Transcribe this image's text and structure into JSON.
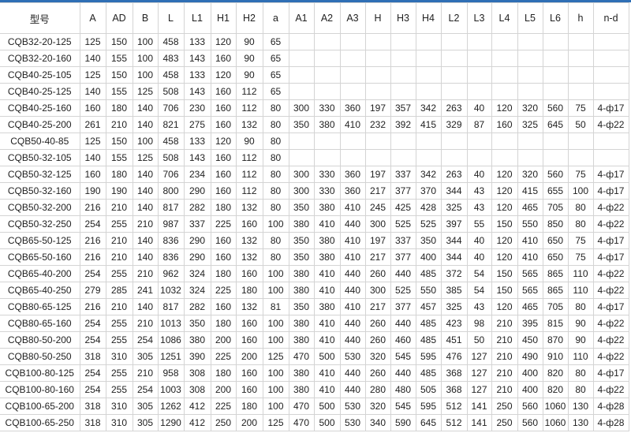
{
  "table": {
    "headers": [
      "型号",
      "A",
      "AD",
      "B",
      "L",
      "L1",
      "H1",
      "H2",
      "a",
      "A1",
      "A2",
      "A3",
      "H",
      "H3",
      "H4",
      "L2",
      "L3",
      "L4",
      "L5",
      "L6",
      "h",
      "n-d"
    ],
    "rows": [
      [
        "CQB32-20-125",
        "125",
        "150",
        "100",
        "458",
        "133",
        "120",
        "90",
        "65",
        "",
        "",
        "",
        "",
        "",
        "",
        "",
        "",
        "",
        "",
        "",
        "",
        ""
      ],
      [
        "CQB32-20-160",
        "140",
        "155",
        "100",
        "483",
        "143",
        "160",
        "90",
        "65",
        "",
        "",
        "",
        "",
        "",
        "",
        "",
        "",
        "",
        "",
        "",
        "",
        ""
      ],
      [
        "CQB40-25-105",
        "125",
        "150",
        "100",
        "458",
        "133",
        "120",
        "90",
        "65",
        "",
        "",
        "",
        "",
        "",
        "",
        "",
        "",
        "",
        "",
        "",
        "",
        ""
      ],
      [
        "CQB40-25-125",
        "140",
        "155",
        "125",
        "508",
        "143",
        "160",
        "112",
        "65",
        "",
        "",
        "",
        "",
        "",
        "",
        "",
        "",
        "",
        "",
        "",
        "",
        ""
      ],
      [
        "CQB40-25-160",
        "160",
        "180",
        "140",
        "706",
        "230",
        "160",
        "112",
        "80",
        "300",
        "330",
        "360",
        "197",
        "357",
        "342",
        "263",
        "40",
        "120",
        "320",
        "560",
        "75",
        "4-ф17"
      ],
      [
        "CQB40-25-200",
        "261",
        "210",
        "140",
        "821",
        "275",
        "160",
        "132",
        "80",
        "350",
        "380",
        "410",
        "232",
        "392",
        "415",
        "329",
        "87",
        "160",
        "325",
        "645",
        "50",
        "4-ф22"
      ],
      [
        "CQB50-40-85",
        "125",
        "150",
        "100",
        "458",
        "133",
        "120",
        "90",
        "80",
        "",
        "",
        "",
        "",
        "",
        "",
        "",
        "",
        "",
        "",
        "",
        "",
        ""
      ],
      [
        "CQB50-32-105",
        "140",
        "155",
        "125",
        "508",
        "143",
        "160",
        "112",
        "80",
        "",
        "",
        "",
        "",
        "",
        "",
        "",
        "",
        "",
        "",
        "",
        "",
        ""
      ],
      [
        "CQB50-32-125",
        "160",
        "180",
        "140",
        "706",
        "234",
        "160",
        "112",
        "80",
        "300",
        "330",
        "360",
        "197",
        "337",
        "342",
        "263",
        "40",
        "120",
        "320",
        "560",
        "75",
        "4-ф17"
      ],
      [
        "CQB50-32-160",
        "190",
        "190",
        "140",
        "800",
        "290",
        "160",
        "112",
        "80",
        "300",
        "330",
        "360",
        "217",
        "377",
        "370",
        "344",
        "43",
        "120",
        "415",
        "655",
        "100",
        "4-ф17"
      ],
      [
        "CQB50-32-200",
        "216",
        "210",
        "140",
        "817",
        "282",
        "180",
        "132",
        "80",
        "350",
        "380",
        "410",
        "245",
        "425",
        "428",
        "325",
        "43",
        "120",
        "465",
        "705",
        "80",
        "4-ф22"
      ],
      [
        "CQB50-32-250",
        "254",
        "255",
        "210",
        "987",
        "337",
        "225",
        "160",
        "100",
        "380",
        "410",
        "440",
        "300",
        "525",
        "525",
        "397",
        "55",
        "150",
        "550",
        "850",
        "80",
        "4-ф22"
      ],
      [
        "CQB65-50-125",
        "216",
        "210",
        "140",
        "836",
        "290",
        "160",
        "132",
        "80",
        "350",
        "380",
        "410",
        "197",
        "337",
        "350",
        "344",
        "40",
        "120",
        "410",
        "650",
        "75",
        "4-ф17"
      ],
      [
        "CQB65-50-160",
        "216",
        "210",
        "140",
        "836",
        "290",
        "160",
        "132",
        "80",
        "350",
        "380",
        "410",
        "217",
        "377",
        "400",
        "344",
        "40",
        "120",
        "410",
        "650",
        "75",
        "4-ф17"
      ],
      [
        "CQB65-40-200",
        "254",
        "255",
        "210",
        "962",
        "324",
        "180",
        "160",
        "100",
        "380",
        "410",
        "440",
        "260",
        "440",
        "485",
        "372",
        "54",
        "150",
        "565",
        "865",
        "110",
        "4-ф22"
      ],
      [
        "CQB65-40-250",
        "279",
        "285",
        "241",
        "1032",
        "324",
        "225",
        "180",
        "100",
        "380",
        "410",
        "440",
        "300",
        "525",
        "550",
        "385",
        "54",
        "150",
        "565",
        "865",
        "110",
        "4-ф22"
      ],
      [
        "CQB80-65-125",
        "216",
        "210",
        "140",
        "817",
        "282",
        "160",
        "132",
        "81",
        "350",
        "380",
        "410",
        "217",
        "377",
        "457",
        "325",
        "43",
        "120",
        "465",
        "705",
        "80",
        "4-ф17"
      ],
      [
        "CQB80-65-160",
        "254",
        "255",
        "210",
        "1013",
        "350",
        "180",
        "160",
        "100",
        "380",
        "410",
        "440",
        "260",
        "440",
        "485",
        "423",
        "98",
        "210",
        "395",
        "815",
        "90",
        "4-ф22"
      ],
      [
        "CQB80-50-200",
        "254",
        "255",
        "254",
        "1086",
        "380",
        "200",
        "160",
        "100",
        "380",
        "410",
        "440",
        "260",
        "460",
        "485",
        "451",
        "50",
        "210",
        "450",
        "870",
        "90",
        "4-ф22"
      ],
      [
        "CQB80-50-250",
        "318",
        "310",
        "305",
        "1251",
        "390",
        "225",
        "200",
        "125",
        "470",
        "500",
        "530",
        "320",
        "545",
        "595",
        "476",
        "127",
        "210",
        "490",
        "910",
        "110",
        "4-ф22"
      ],
      [
        "CQB100-80-125",
        "254",
        "255",
        "210",
        "958",
        "308",
        "180",
        "160",
        "100",
        "380",
        "410",
        "440",
        "260",
        "440",
        "485",
        "368",
        "127",
        "210",
        "400",
        "820",
        "80",
        "4-ф17"
      ],
      [
        "CQB100-80-160",
        "254",
        "255",
        "254",
        "1003",
        "308",
        "200",
        "160",
        "100",
        "380",
        "410",
        "440",
        "280",
        "480",
        "505",
        "368",
        "127",
        "210",
        "400",
        "820",
        "80",
        "4-ф22"
      ],
      [
        "CQB100-65-200",
        "318",
        "310",
        "305",
        "1262",
        "412",
        "225",
        "180",
        "100",
        "470",
        "500",
        "530",
        "320",
        "545",
        "595",
        "512",
        "141",
        "250",
        "560",
        "1060",
        "130",
        "4-ф28"
      ],
      [
        "CQB100-65-250",
        "318",
        "310",
        "305",
        "1290",
        "412",
        "250",
        "200",
        "125",
        "470",
        "500",
        "530",
        "340",
        "590",
        "645",
        "512",
        "141",
        "250",
        "560",
        "1060",
        "130",
        "4-ф28"
      ]
    ]
  }
}
